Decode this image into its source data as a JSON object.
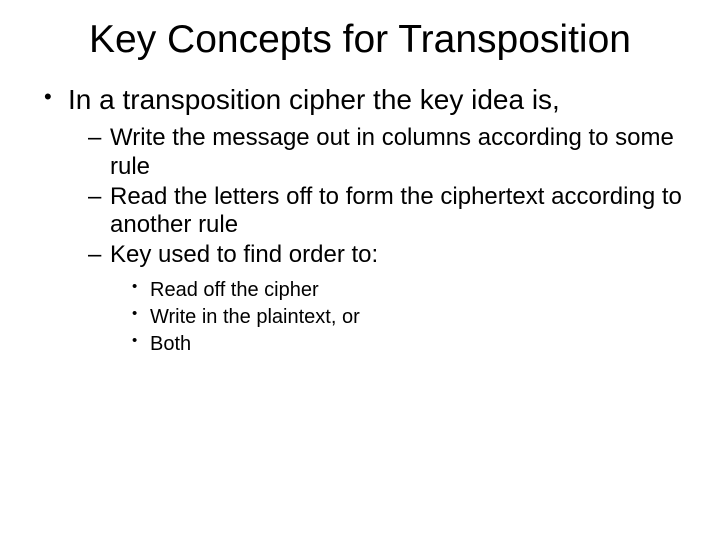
{
  "slide": {
    "title": "Key Concepts for Transposition",
    "title_fontsize": 39,
    "title_color": "#000000",
    "background_color": "#ffffff",
    "font_family": "Arial",
    "bullets": {
      "lvl1": [
        {
          "text": "In a transposition cipher the key idea is,",
          "fontsize": 28,
          "marker": "•",
          "lvl2": [
            {
              "text": "Write the message out in columns according to some rule",
              "fontsize": 24,
              "marker": "–"
            },
            {
              "text": "Read the letters off to form the ciphertext according to another rule",
              "fontsize": 24,
              "marker": "–"
            },
            {
              "text": "Key used to find order to:",
              "fontsize": 24,
              "marker": "–",
              "lvl3": [
                {
                  "text": "Read off the cipher",
                  "fontsize": 20,
                  "marker": "•"
                },
                {
                  "text": "Write in the plaintext, or",
                  "fontsize": 20,
                  "marker": "•"
                },
                {
                  "text": "Both",
                  "fontsize": 20,
                  "marker": "•"
                }
              ]
            }
          ]
        }
      ]
    }
  }
}
